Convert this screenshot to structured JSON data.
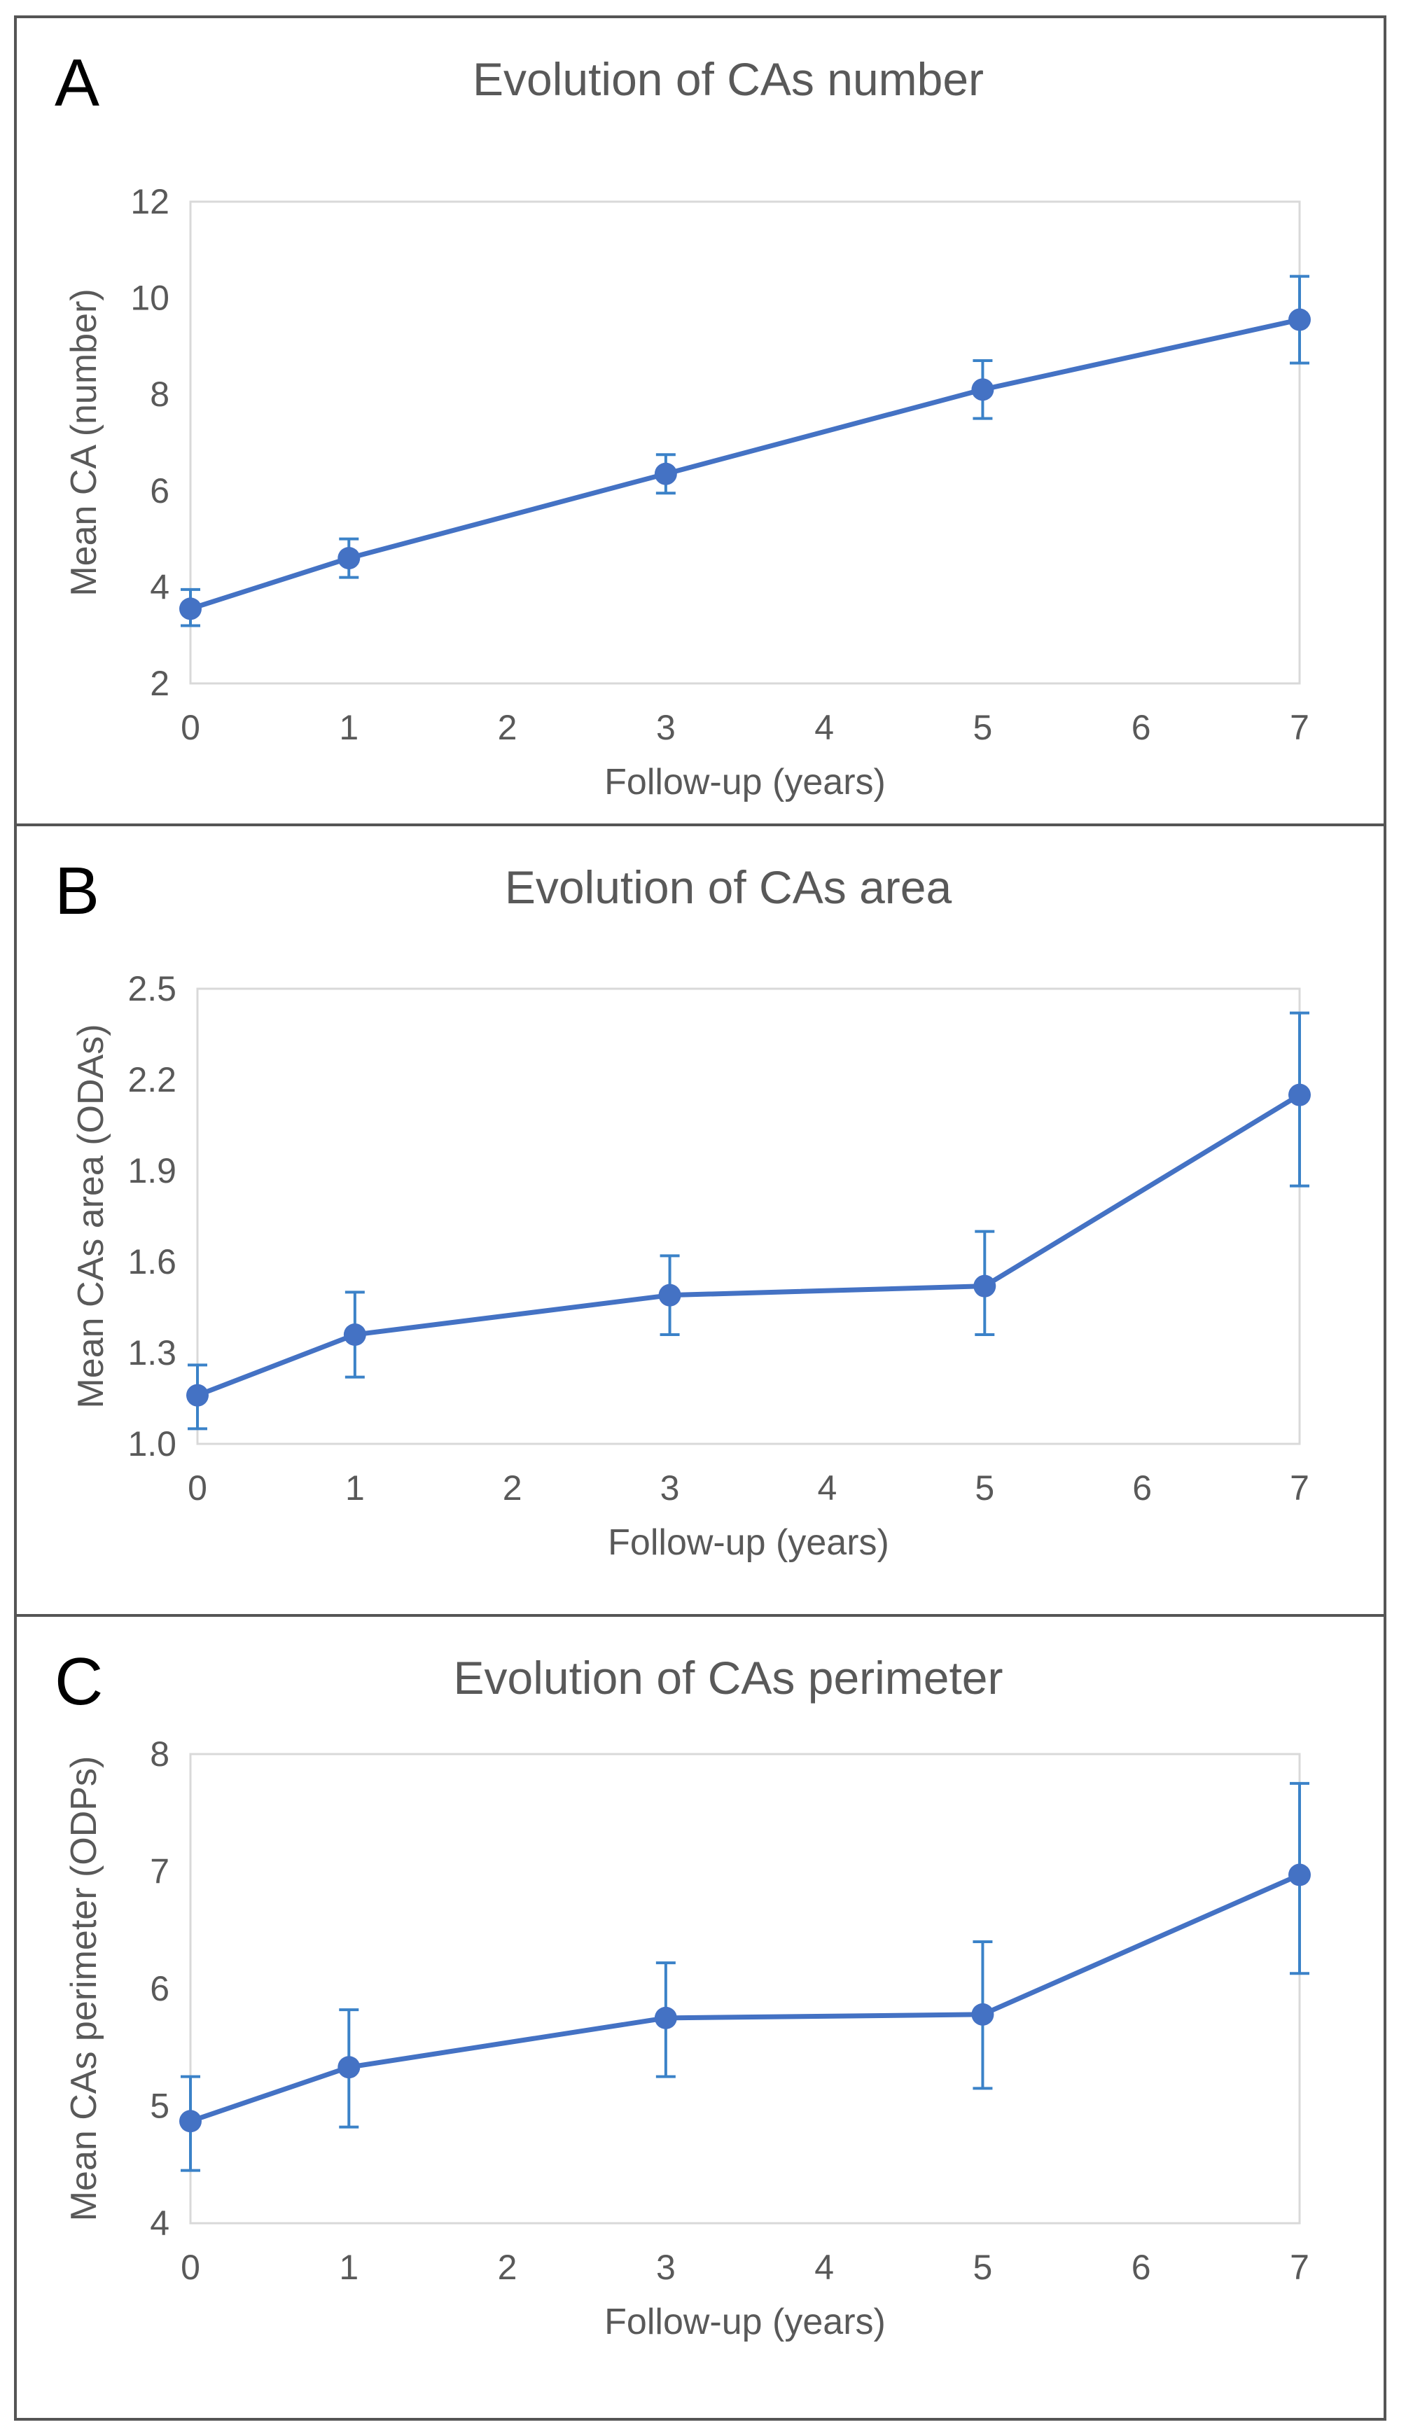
{
  "colors": {
    "series": "#4472C4",
    "error": "#3B82C8",
    "text": "#595959",
    "frame": "#D9D9D9"
  },
  "chart_data": [
    {
      "panel": "A",
      "type": "line",
      "title": "Evolution of CAs number",
      "xlabel": "Follow-up (years)",
      "ylabel": "Mean CA (number)",
      "xlim": [
        0,
        7
      ],
      "ylim": [
        2,
        12
      ],
      "xticks": [
        "0",
        "1",
        "2",
        "3",
        "4",
        "5",
        "6",
        "7"
      ],
      "yticks": [
        "2",
        "4",
        "6",
        "8",
        "10",
        "12"
      ],
      "series": [
        {
          "name": "Mean CA",
          "x": [
            0,
            1,
            3,
            5,
            7
          ],
          "y": [
            3.55,
            4.6,
            6.35,
            8.1,
            9.55
          ],
          "err_low": [
            3.2,
            4.2,
            5.95,
            7.5,
            8.65
          ],
          "err_high": [
            3.95,
            5.0,
            6.75,
            8.7,
            10.45
          ]
        }
      ]
    },
    {
      "panel": "B",
      "type": "line",
      "title": "Evolution of CAs area",
      "xlabel": "Follow-up (years)",
      "ylabel": "Mean CAs area (ODAs)",
      "xlim": [
        0,
        7
      ],
      "ylim": [
        1.0,
        2.5
      ],
      "xticks": [
        "0",
        "1",
        "2",
        "3",
        "4",
        "5",
        "6",
        "7"
      ],
      "yticks": [
        "1.0",
        "1.3",
        "1.6",
        "1.9",
        "2.2",
        "2.5"
      ],
      "series": [
        {
          "name": "Mean CAs area",
          "x": [
            0,
            1,
            3,
            5,
            7
          ],
          "y": [
            1.16,
            1.36,
            1.49,
            1.52,
            2.15
          ],
          "err_low": [
            1.05,
            1.22,
            1.36,
            1.36,
            1.85
          ],
          "err_high": [
            1.26,
            1.5,
            1.62,
            1.7,
            2.42
          ]
        }
      ]
    },
    {
      "panel": "C",
      "type": "line",
      "title": "Evolution of CAs perimeter",
      "xlabel": "Follow-up (years)",
      "ylabel": "Mean CAs perimeter (ODPs)",
      "xlim": [
        0,
        7
      ],
      "ylim": [
        4,
        8
      ],
      "xticks": [
        "0",
        "1",
        "2",
        "3",
        "4",
        "5",
        "6",
        "7"
      ],
      "yticks": [
        "4",
        "5",
        "6",
        "7",
        "8"
      ],
      "series": [
        {
          "name": "Mean CAs perimeter",
          "x": [
            0,
            1,
            3,
            5,
            7
          ],
          "y": [
            4.87,
            5.33,
            5.75,
            5.78,
            6.97
          ],
          "err_low": [
            4.45,
            4.82,
            5.25,
            5.15,
            6.13
          ],
          "err_high": [
            5.25,
            5.82,
            6.22,
            6.4,
            7.75
          ]
        }
      ]
    }
  ]
}
